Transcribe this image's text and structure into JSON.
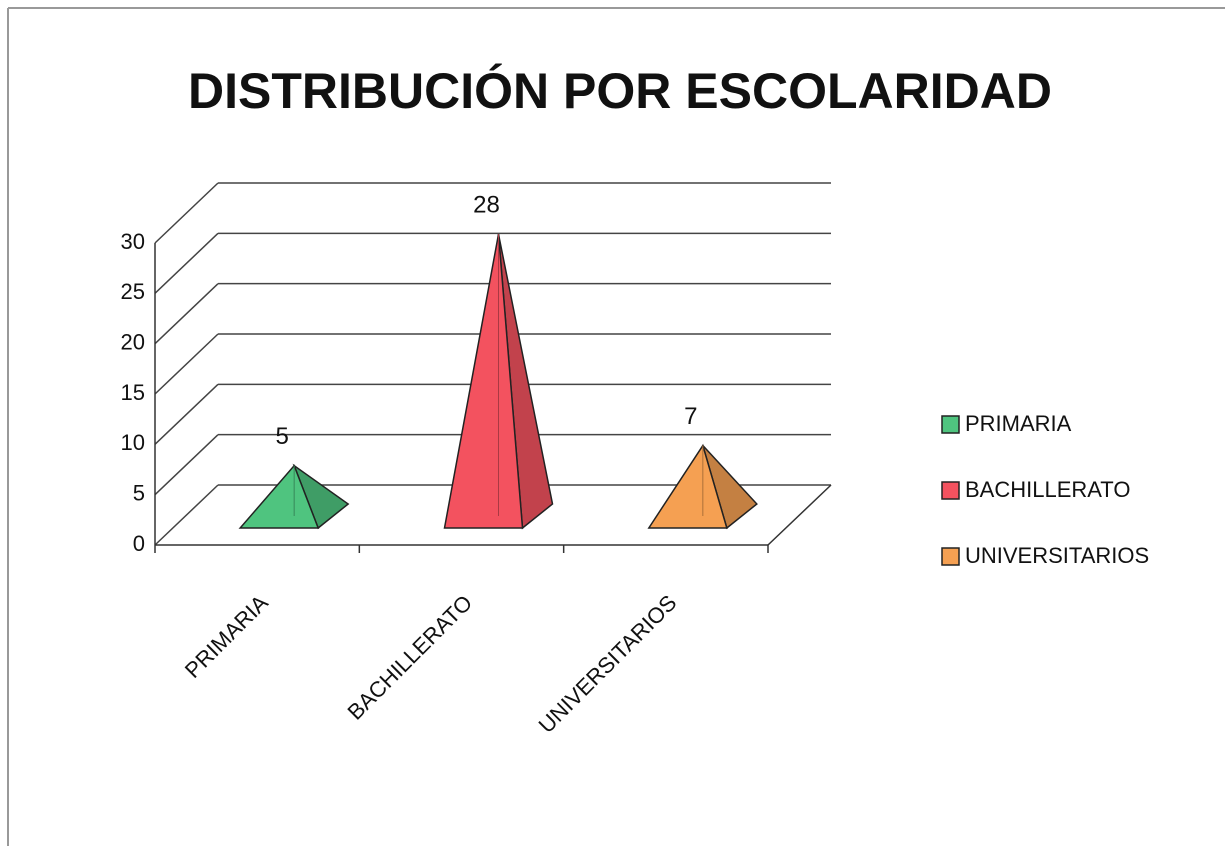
{
  "chart_data": {
    "type": "pyramid3d",
    "title": "DISTRIBUCIÓN POR ESCOLARIDAD",
    "categories": [
      "PRIMARIA",
      "BACHILLERATO",
      "UNIVERSITARIOS"
    ],
    "values": [
      5,
      28,
      7
    ],
    "colors": [
      "#4fc47f",
      "#f3525f",
      "#f5a052"
    ],
    "ylim": [
      0,
      30
    ],
    "yticks": [
      0,
      5,
      10,
      15,
      20,
      25,
      30
    ],
    "grid": true,
    "legend": "right"
  }
}
